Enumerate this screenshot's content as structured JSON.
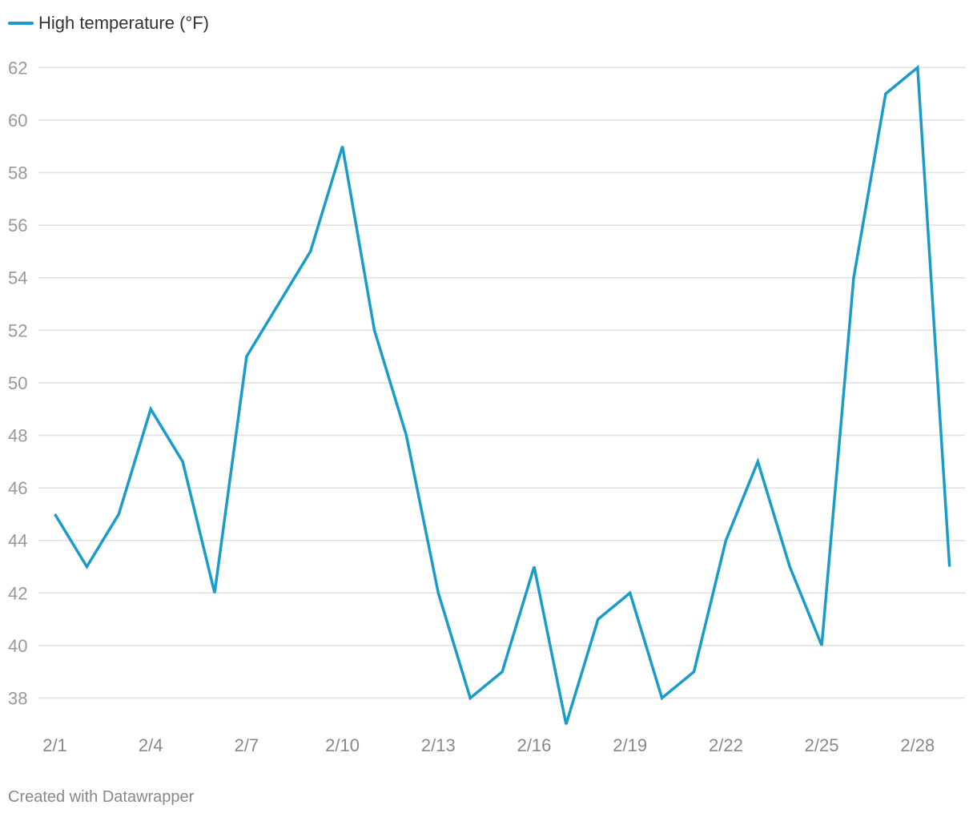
{
  "chart_data": {
    "type": "line",
    "title": "",
    "xlabel": "",
    "ylabel": "",
    "x": [
      "2/1",
      "2/2",
      "2/3",
      "2/4",
      "2/5",
      "2/6",
      "2/7",
      "2/8",
      "2/9",
      "2/10",
      "2/11",
      "2/12",
      "2/13",
      "2/14",
      "2/15",
      "2/16",
      "2/17",
      "2/18",
      "2/19",
      "2/20",
      "2/21",
      "2/22",
      "2/23",
      "2/24",
      "2/25",
      "2/26",
      "2/27",
      "2/28",
      "2/29"
    ],
    "x_tick_labels": [
      "2/1",
      "2/4",
      "2/7",
      "2/10",
      "2/13",
      "2/16",
      "2/19",
      "2/22",
      "2/25",
      "2/28"
    ],
    "series": [
      {
        "name": "High temperature (°F)",
        "color": "#1a9cc9",
        "values": [
          45,
          43,
          45,
          49,
          47,
          42,
          51,
          53,
          55,
          59,
          52,
          48,
          42,
          38,
          39,
          43,
          37,
          41,
          42,
          38,
          39,
          44,
          47,
          43,
          40,
          54,
          61,
          62,
          43
        ]
      }
    ],
    "y_ticks": [
      38,
      40,
      42,
      44,
      46,
      48,
      50,
      52,
      54,
      56,
      58,
      60,
      62
    ],
    "ylim": [
      37,
      62
    ],
    "grid": true,
    "legend_position": "top-left"
  },
  "footer": {
    "credit": "Created with Datawrapper"
  },
  "colors": {
    "line": "#1a9cc9",
    "grid": "#e0e0e0"
  }
}
